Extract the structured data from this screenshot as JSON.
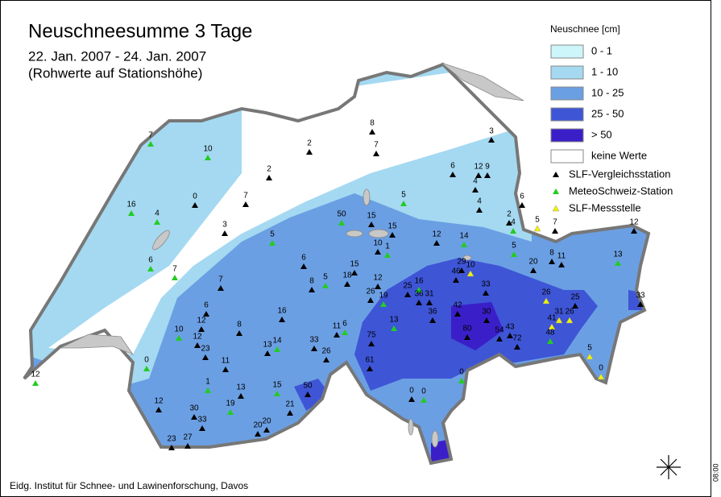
{
  "title": "Neuschneesumme 3 Tage",
  "subtitle": "22. Jan. 2007 - 24. Jan. 2007",
  "note": "(Rohwerte auf Stationshöhe)",
  "legend": {
    "title": "Neuschnee [cm]",
    "classes": [
      {
        "label": "0 - 1",
        "color": "#cdf6fb"
      },
      {
        "label": "1 - 10",
        "color": "#a4d9f1"
      },
      {
        "label": "10 - 25",
        "color": "#6b9fe3"
      },
      {
        "label": "25 - 50",
        "color": "#3e55d6"
      },
      {
        "label": "> 50",
        "color": "#3a1fc9"
      },
      {
        "label": "keine Werte",
        "color": "#ffffff"
      }
    ],
    "stations": [
      {
        "label": "SLF-Vergleichsstation",
        "color": "#000000"
      },
      {
        "label": "MeteoSchweiz-Station",
        "color": "#22cc22"
      },
      {
        "label": "SLF-Messstelle",
        "color": "#f2f200"
      }
    ]
  },
  "stations": [
    7,
    10,
    2,
    8,
    7,
    3,
    2,
    6,
    12,
    9,
    4,
    16,
    4,
    0,
    7,
    5,
    4,
    6,
    50,
    15,
    3,
    15,
    2,
    4,
    5,
    7,
    12,
    5,
    12,
    14,
    10,
    1,
    5,
    6,
    7,
    6,
    20,
    8,
    11,
    13,
    15,
    29,
    10,
    46,
    18,
    12,
    7,
    5,
    8,
    16,
    25,
    33,
    26,
    19,
    36,
    31,
    26,
    25,
    33,
    6,
    16,
    42,
    36,
    30,
    31,
    26,
    41,
    12,
    8,
    11,
    6,
    13,
    10,
    80,
    54,
    43,
    48,
    75,
    12,
    72,
    13,
    14,
    33,
    5,
    23,
    26,
    0,
    11,
    61,
    0,
    12,
    0,
    1,
    50,
    13,
    15,
    0,
    0,
    12,
    19,
    21,
    30,
    33,
    20,
    20,
    23,
    27
  ],
  "footer": "Eidg. Institut für Schnee- und Lawinenforschung, Davos",
  "time": "08:00"
}
